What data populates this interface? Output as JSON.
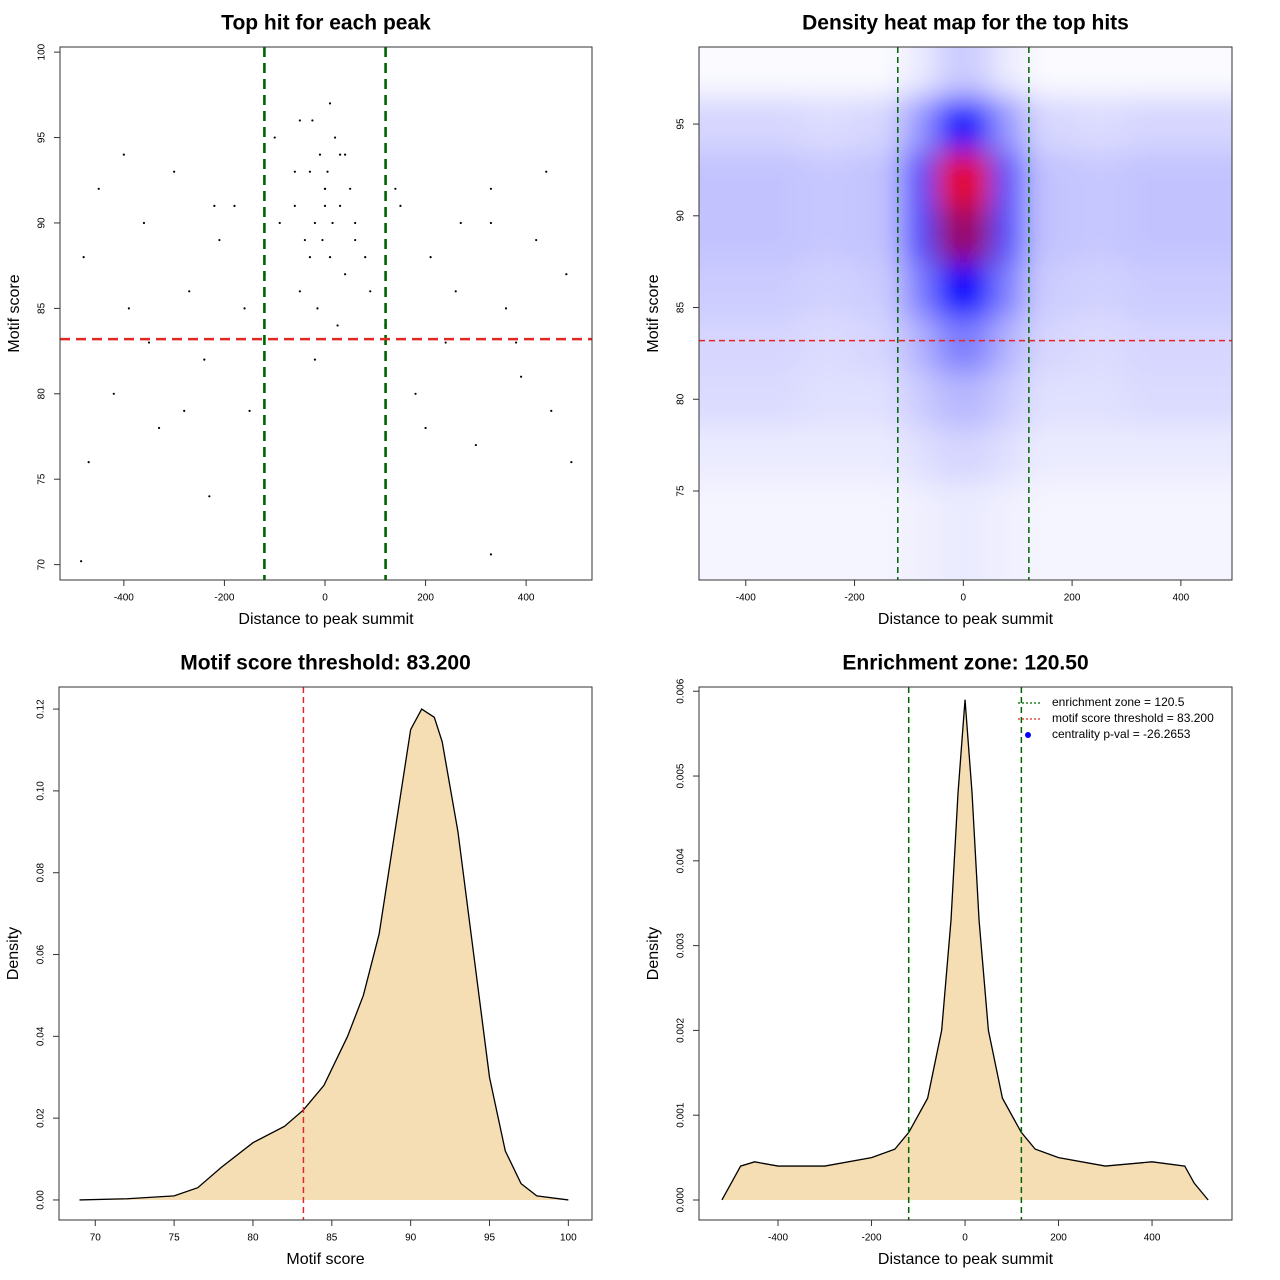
{
  "chart_data": [
    {
      "type": "scatter",
      "title": "Top hit for each peak",
      "x_label": "Distance to peak summit",
      "y_label": "Motif score",
      "x": [
        -480,
        -450,
        -420,
        -390,
        -360,
        -330,
        -300,
        -270,
        -240,
        -210,
        -180,
        -150,
        -120,
        -90,
        -60,
        -30,
        0,
        30,
        60,
        90,
        120,
        150,
        180,
        210,
        240,
        270,
        300,
        330,
        360,
        390,
        420,
        450,
        480,
        -470,
        -400,
        -350,
        -280,
        -220,
        -160,
        -100,
        -50,
        -20,
        10,
        40,
        80,
        140,
        200,
        260,
        330,
        380,
        440,
        490,
        -60,
        -40,
        -30,
        -20,
        -10,
        0,
        10,
        20,
        30,
        40,
        60,
        -50,
        -25,
        -5,
        5,
        25,
        50,
        -15,
        15,
        0,
        -485,
        330,
        -230
      ],
      "values": [
        88,
        92,
        80,
        85,
        90,
        78,
        93,
        86,
        82,
        89,
        91,
        79,
        87,
        90,
        93,
        88,
        92,
        94,
        89,
        86,
        84,
        91,
        80,
        88,
        83,
        90,
        77,
        92,
        85,
        81,
        89,
        79,
        87,
        76,
        94,
        83,
        79,
        91,
        85,
        95,
        96,
        82,
        97,
        94,
        88,
        92,
        78,
        86,
        90,
        83,
        93,
        76,
        91,
        89,
        93,
        90,
        94,
        92,
        88,
        95,
        91,
        87,
        90,
        86,
        96,
        89,
        93,
        84,
        92,
        85,
        90,
        91,
        70.2,
        70.6,
        74
      ],
      "color": "#000000",
      "xlim": [
        -527,
        531
      ],
      "ylim": [
        69.1,
        100.3
      ],
      "xticks": [
        -400,
        -200,
        0,
        200,
        400
      ],
      "yticks": [
        70,
        75,
        80,
        85,
        90,
        95,
        100
      ],
      "vlines": [
        -120.5,
        120.5
      ],
      "vline_color": "#006400",
      "hlines": [
        83.2
      ],
      "hline_color": "#e32626"
    },
    {
      "type": "heatmap",
      "title": "Density heat map for the top hits",
      "x_label": "Distance to peak summit",
      "y_label": "Motif score",
      "x": [
        -450,
        -350,
        -250,
        -150,
        -75,
        -25,
        25,
        75,
        150,
        250,
        350,
        450
      ],
      "y": [
        74,
        77,
        80,
        83,
        86,
        89,
        92,
        95,
        98
      ],
      "z": [
        [
          0.02,
          0.02,
          0.02,
          0.02,
          0.03,
          0.04,
          0.04,
          0.03,
          0.02,
          0.02,
          0.02,
          0.02
        ],
        [
          0.04,
          0.04,
          0.04,
          0.04,
          0.06,
          0.08,
          0.08,
          0.06,
          0.04,
          0.04,
          0.04,
          0.04
        ],
        [
          0.07,
          0.07,
          0.06,
          0.06,
          0.1,
          0.14,
          0.14,
          0.1,
          0.06,
          0.06,
          0.07,
          0.07
        ],
        [
          0.08,
          0.08,
          0.07,
          0.08,
          0.15,
          0.25,
          0.25,
          0.15,
          0.08,
          0.07,
          0.08,
          0.08
        ],
        [
          0.1,
          0.1,
          0.09,
          0.1,
          0.25,
          0.5,
          0.5,
          0.25,
          0.1,
          0.09,
          0.1,
          0.1
        ],
        [
          0.12,
          0.12,
          0.11,
          0.12,
          0.35,
          0.8,
          0.8,
          0.35,
          0.12,
          0.11,
          0.12,
          0.12
        ],
        [
          0.12,
          0.12,
          0.11,
          0.12,
          0.35,
          0.95,
          0.95,
          0.35,
          0.12,
          0.11,
          0.12,
          0.12
        ],
        [
          0.08,
          0.08,
          0.07,
          0.08,
          0.2,
          0.45,
          0.45,
          0.2,
          0.08,
          0.07,
          0.08,
          0.08
        ],
        [
          0.01,
          0.01,
          0.01,
          0.01,
          0.04,
          0.1,
          0.1,
          0.04,
          0.01,
          0.01,
          0.01,
          0.01
        ]
      ],
      "colors": [
        "#ffffff",
        "#0000ff",
        "#ff0000"
      ],
      "xlim": [
        -486,
        494
      ],
      "ylim": [
        70.15,
        99.2
      ],
      "xticks": [
        -400,
        -200,
        0,
        200,
        400
      ],
      "yticks": [
        75,
        80,
        85,
        90,
        95
      ],
      "vlines": [
        -120.5,
        120.5
      ],
      "vline_color": "#006400",
      "hlines": [
        83.2
      ],
      "hline_color": "#e32626"
    },
    {
      "type": "area",
      "title": "Motif score threshold: 83.200",
      "x_label": "Motif score",
      "y_label": "Density",
      "x": [
        69,
        72,
        75,
        76.5,
        78,
        80,
        82,
        83.2,
        84.5,
        86,
        87,
        88,
        89,
        90,
        90.7,
        91.5,
        92,
        93,
        94,
        95,
        96,
        97,
        98,
        100
      ],
      "values": [
        0,
        0.0003,
        0.001,
        0.003,
        0.008,
        0.014,
        0.018,
        0.022,
        0.028,
        0.04,
        0.05,
        0.065,
        0.09,
        0.115,
        0.12,
        0.118,
        0.112,
        0.09,
        0.06,
        0.03,
        0.012,
        0.004,
        0.001,
        0
      ],
      "color": "#000000",
      "fill": "#f5deb3",
      "xlim": [
        67.7,
        101.5
      ],
      "ylim": [
        -0.0049,
        0.1254
      ],
      "xticks": [
        70,
        75,
        80,
        85,
        90,
        95,
        100
      ],
      "yticks": [
        {
          "value": 0,
          "label": "0.00"
        },
        0.02,
        0.04,
        0.06,
        0.08,
        {
          "value": 0.1,
          "label": "0.10"
        },
        0.12
      ],
      "vlines": [
        83.2
      ],
      "vline_color": "#e32626"
    },
    {
      "type": "area",
      "title": "Enrichment zone: 120.50",
      "x_label": "Distance to peak summit",
      "y_label": "Density",
      "x": [
        -520,
        -500,
        -480,
        -450,
        -400,
        -300,
        -200,
        -150,
        -120,
        -80,
        -50,
        -30,
        -15,
        0,
        15,
        30,
        50,
        80,
        120,
        150,
        200,
        300,
        400,
        470,
        490,
        520
      ],
      "values": [
        0,
        0.0002,
        0.0004,
        0.00045,
        0.0004,
        0.0004,
        0.0005,
        0.0006,
        0.0008,
        0.0012,
        0.002,
        0.0033,
        0.0048,
        0.0059,
        0.0048,
        0.0033,
        0.002,
        0.0012,
        0.0008,
        0.0006,
        0.0005,
        0.0004,
        0.00045,
        0.0004,
        0.0002,
        0
      ],
      "color": "#000000",
      "fill": "#f5deb3",
      "xlim": [
        -569,
        571
      ],
      "ylim": [
        -0.000236,
        0.00605
      ],
      "xticks": [
        -400,
        -200,
        0,
        200,
        400
      ],
      "yticks": [
        {
          "value": 0,
          "label": "0.000"
        },
        0.001,
        0.002,
        0.003,
        0.004,
        0.005,
        0.006
      ],
      "vlines": [
        -120.5,
        120.5
      ],
      "vline_color": "#006400",
      "legend_position": "top-right",
      "legend": [
        {
          "label": "enrichment zone = 120.5",
          "color": "#006400",
          "marker": "dotted-line"
        },
        {
          "label": "motif score threshold = 83.200",
          "color": "#e32626",
          "marker": "dotted-line"
        },
        {
          "label": "centrality p-val = -26.2653",
          "color": "#0000ff",
          "marker": "dot"
        }
      ]
    }
  ]
}
